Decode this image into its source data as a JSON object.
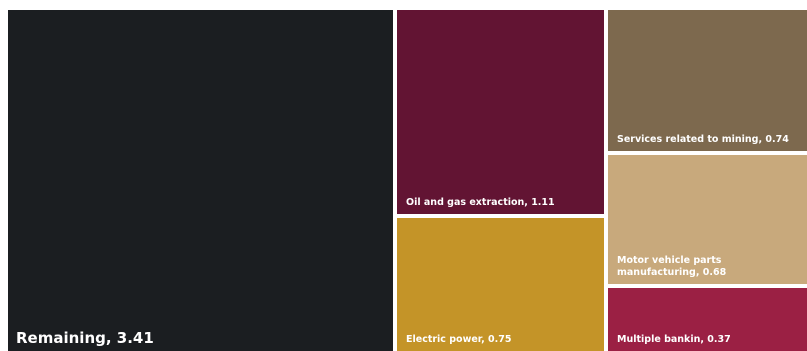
{
  "chart_data": {
    "type": "treemap",
    "title": "",
    "nodes": [
      {
        "label": "Remaining, 3.41",
        "name": "Remaining",
        "value": 3.41,
        "color": "#1b1e21"
      },
      {
        "label": "Oil and gas extraction, 1.11",
        "name": "Oil and gas extraction",
        "value": 1.11,
        "color": "#621433"
      },
      {
        "label": "Electric power, 0.75",
        "name": "Electric power",
        "value": 0.75,
        "color": "#c49428"
      },
      {
        "label": "Services related to mining, 0.74",
        "name": "Services related to mining",
        "value": 0.74,
        "color": "#7d694e"
      },
      {
        "label": "Motor vehicle parts manufacturing, 0.68",
        "name": "Motor vehicle parts manufacturing",
        "value": 0.68,
        "color": "#c8a97c"
      },
      {
        "label": "Multiple bankin, 0.37",
        "name": "Multiple bankin",
        "value": 0.37,
        "color": "#9b2044"
      }
    ]
  }
}
